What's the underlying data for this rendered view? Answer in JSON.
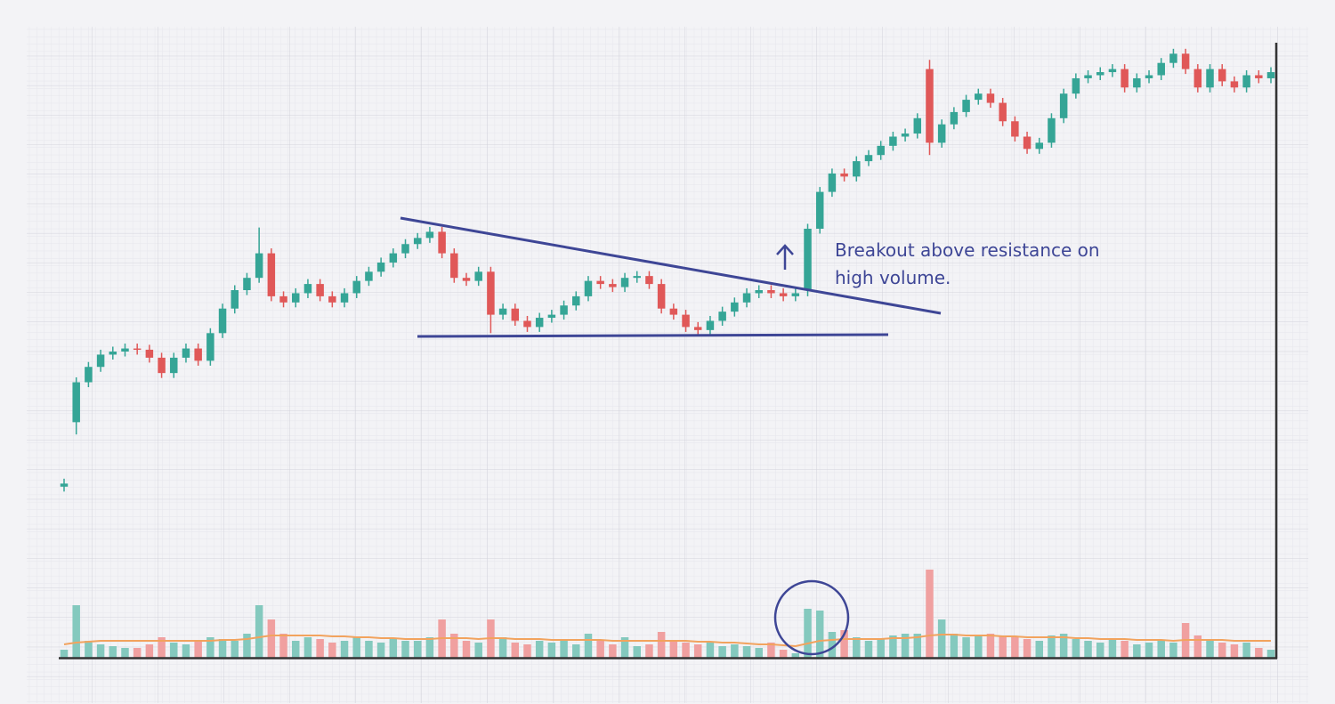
{
  "chart_data": {
    "type": "candlestick",
    "annotation": "Breakout above resistance on high volume.",
    "ylim": [
      0,
      100
    ],
    "y2lim": [
      0,
      100
    ],
    "up_color": "#35a596",
    "down_color": "#e05858",
    "volume_up_color": "#84c9be",
    "volume_down_color": "#f0a0a0",
    "ma_color": "#f2a35e",
    "open": [
      28.0,
      38.5,
      45,
      47.5,
      49.5,
      50,
      50.5,
      50.3,
      49,
      46.5,
      49,
      50.5,
      48.5,
      53,
      57,
      60,
      62,
      66,
      59,
      58,
      59.5,
      61,
      59,
      58,
      59.5,
      61.5,
      63,
      64.5,
      66,
      67.5,
      68.5,
      69.5,
      66,
      62,
      61.5,
      63,
      56,
      57,
      55,
      54,
      55.5,
      56,
      57.5,
      59,
      61.5,
      61,
      60.5,
      62,
      62.3,
      61,
      57,
      56,
      54,
      53.5,
      55,
      56.5,
      58,
      59.5,
      60,
      59.5,
      59,
      60,
      70,
      76,
      79,
      78.5,
      81,
      82,
      83.5,
      85,
      85.5,
      96,
      84,
      87,
      89,
      91,
      92,
      90.5,
      87.5,
      85,
      83,
      84,
      88,
      92,
      94.5,
      95,
      95.5,
      96,
      93,
      94.5,
      95,
      97,
      98.5,
      96,
      93,
      96,
      94,
      93,
      95,
      94.5
    ],
    "close": [
      28.5,
      45,
      47.5,
      49.5,
      50,
      50.5,
      50.3,
      49,
      46.5,
      49,
      50.5,
      48.5,
      53,
      57,
      60,
      62,
      66,
      59,
      58,
      59.5,
      61,
      59,
      58,
      59.5,
      61.5,
      63,
      64.5,
      66,
      67.5,
      68.5,
      69.5,
      66,
      62,
      61.5,
      63,
      56,
      57,
      55,
      54,
      55.5,
      56,
      57.5,
      59,
      61.5,
      61,
      60.5,
      62,
      62.3,
      61,
      57,
      56,
      54,
      53.5,
      55,
      56.5,
      58,
      59.5,
      60,
      59.5,
      59,
      59.5,
      70,
      76,
      79,
      78.5,
      81,
      82,
      83.5,
      85,
      85.5,
      88,
      84,
      87,
      89,
      91,
      92,
      90.5,
      87.5,
      85,
      83,
      84,
      88,
      92,
      94.5,
      95,
      95.5,
      96,
      93,
      94.5,
      95,
      97,
      98.5,
      96,
      93,
      96,
      94,
      93,
      95,
      94.5,
      95.5
    ],
    "high": [
      29.3,
      45.8,
      48.3,
      50.3,
      50.8,
      51.3,
      51.3,
      51.1,
      49.8,
      49.8,
      51.3,
      51.3,
      53.8,
      57.8,
      60.8,
      62.8,
      70.2,
      66.8,
      59.8,
      60.3,
      61.8,
      61.8,
      59.8,
      60.3,
      62.3,
      63.8,
      65.3,
      66.8,
      68.3,
      69.3,
      70.3,
      70.3,
      66.8,
      62.8,
      63.8,
      63.8,
      57.8,
      57.8,
      55.8,
      56.3,
      56.8,
      58.3,
      59.8,
      62.3,
      62.3,
      61.8,
      62.8,
      63.1,
      63.1,
      61.8,
      57.8,
      56.8,
      54.8,
      55.8,
      57.3,
      58.8,
      60.3,
      60.8,
      60.8,
      60.3,
      60.3,
      70.8,
      76.8,
      79.8,
      79.8,
      81.8,
      82.8,
      84.3,
      85.8,
      86.3,
      88.8,
      97.5,
      87.8,
      89.8,
      91.8,
      92.8,
      92.8,
      91.3,
      88.3,
      85.8,
      84.8,
      88.8,
      92.8,
      95.3,
      95.8,
      96.3,
      96.8,
      96.8,
      95.3,
      95.8,
      97.8,
      99.3,
      99.3,
      96.8,
      96.8,
      96.8,
      94.8,
      95.8,
      95.8,
      96.3
    ],
    "low": [
      27.2,
      36.5,
      44.2,
      46.7,
      48.7,
      49.2,
      49.5,
      48.2,
      45.7,
      45.7,
      48.2,
      47.7,
      47.7,
      52.2,
      56.2,
      59.2,
      61.2,
      58.2,
      57.2,
      57.2,
      58.7,
      58.2,
      57.2,
      57.2,
      58.7,
      60.7,
      62.2,
      63.7,
      65.2,
      66.7,
      67.7,
      65.2,
      61.2,
      60.7,
      60.7,
      53,
      55.2,
      54.2,
      53.2,
      53.2,
      54.7,
      55.2,
      56.7,
      58.2,
      60.2,
      59.7,
      59.7,
      61.2,
      60.2,
      56.2,
      55.2,
      53.2,
      52.5,
      52.7,
      54.2,
      55.7,
      57.2,
      58.7,
      58.7,
      58.2,
      58.2,
      59,
      69.2,
      75.2,
      77.7,
      77.7,
      80.2,
      81.2,
      82.7,
      84.2,
      84.7,
      82,
      83.2,
      86.2,
      88.2,
      90.2,
      89.7,
      86.7,
      84.2,
      82.2,
      82.2,
      83.2,
      87.2,
      91.2,
      93.7,
      94.2,
      94.7,
      92.2,
      92.2,
      93.7,
      94.2,
      96.2,
      95.2,
      92.2,
      92.2,
      93.2,
      92.2,
      92.2,
      93.7,
      93.7
    ],
    "volume": [
      5,
      30,
      10,
      8,
      7,
      6,
      6,
      8,
      12,
      9,
      8,
      10,
      12,
      11,
      10,
      14,
      30,
      22,
      14,
      10,
      12,
      11,
      9,
      10,
      12,
      10,
      9,
      11,
      10,
      10,
      12,
      22,
      14,
      10,
      9,
      22,
      12,
      9,
      8,
      10,
      9,
      11,
      8,
      14,
      10,
      8,
      12,
      7,
      8,
      15,
      10,
      9,
      8,
      9,
      7,
      8,
      7,
      6,
      9,
      5,
      3,
      28,
      27,
      15,
      16,
      12,
      10,
      11,
      13,
      14,
      14,
      50,
      22,
      14,
      12,
      13,
      14,
      13,
      12,
      11,
      10,
      13,
      14,
      11,
      10,
      9,
      11,
      10,
      8,
      9,
      10,
      9,
      20,
      13,
      10,
      9,
      8,
      9,
      6,
      5
    ],
    "volume_ma": [
      8,
      9,
      9.5,
      10,
      10,
      10,
      10,
      10,
      10,
      10,
      10,
      10,
      10,
      10.5,
      10.5,
      11,
      12,
      13,
      13,
      13,
      13,
      13,
      12.5,
      12.5,
      12,
      12,
      11.5,
      11.5,
      11,
      11,
      11,
      11.5,
      11.5,
      11.5,
      11,
      11.5,
      11.5,
      11,
      11,
      11,
      10.5,
      10.5,
      10.5,
      10.5,
      10.5,
      10,
      10,
      10,
      10,
      10,
      10,
      10,
      9.5,
      9.5,
      9,
      9,
      8.5,
      8,
      8,
      7.5,
      7,
      8.5,
      10,
      10.5,
      11,
      11,
      11,
      11,
      11.5,
      11.5,
      12,
      13,
      13.5,
      13.5,
      13,
      13,
      13,
      12.5,
      12.5,
      12,
      12,
      12,
      12,
      11.5,
      11.5,
      11,
      11,
      11,
      10.5,
      10.5,
      10.5,
      10,
      10.5,
      10.5,
      10.5,
      10.5,
      10,
      10,
      10,
      10
    ]
  }
}
